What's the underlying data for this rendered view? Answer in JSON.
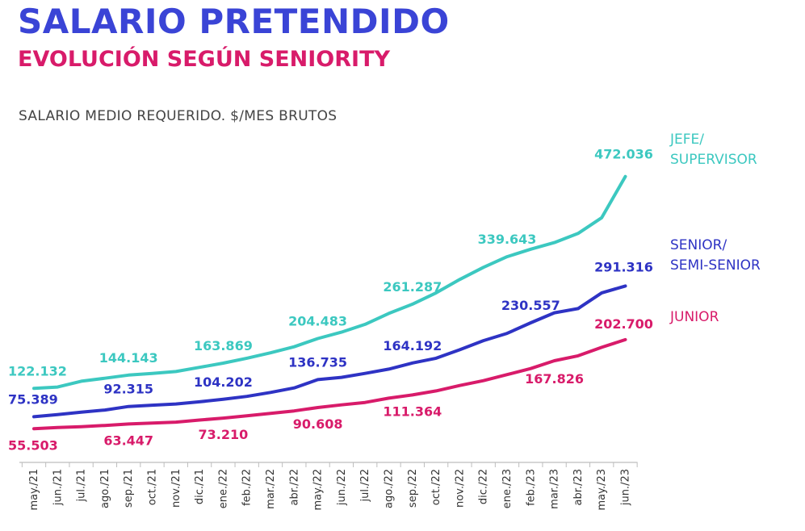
{
  "header": {
    "title": "SALARIO PRETENDIDO",
    "subtitle": "EVOLUCIÓN SEGÚN SENIORITY",
    "title_color": "#3a44d6",
    "subtitle_color": "#d81b6a"
  },
  "chart_data": {
    "type": "line",
    "ylabel": "SALARIO MEDIO REQUERIDO. $/MES BRUTOS",
    "categories": [
      "may./21",
      "jun./21",
      "jul./21",
      "ago./21",
      "sep./21",
      "oct./21",
      "nov./21",
      "dic./21",
      "ene./22",
      "feb./22",
      "mar./22",
      "abr./22",
      "may./22",
      "jun./22",
      "jul./22",
      "ago./22",
      "sep./22",
      "oct./22",
      "nov./22",
      "dic./22",
      "ene./23",
      "feb./23",
      "mar./23",
      "abr./23",
      "may./23",
      "jun./23"
    ],
    "ylim": [
      0,
      500000
    ],
    "grid": false,
    "series": [
      {
        "name": "JEFE/ SUPERVISOR",
        "label_lines": [
          "JEFE/",
          "SUPERVISOR"
        ],
        "color": "#3cc8c0",
        "values": [
          122132,
          124500,
          134000,
          139000,
          144143,
          147000,
          150000,
          157000,
          163869,
          172000,
          181000,
          191000,
          204483,
          215000,
          228000,
          246000,
          261287,
          280000,
          302000,
          322000,
          339643,
          352000,
          363000,
          378000,
          404000,
          472036
        ],
        "labeled_points": [
          {
            "index": 0,
            "text": "122.132"
          },
          {
            "index": 4,
            "text": "144.143"
          },
          {
            "index": 8,
            "text": "163.869"
          },
          {
            "index": 12,
            "text": "204.483"
          },
          {
            "index": 16,
            "text": "261.287"
          },
          {
            "index": 20,
            "text": "339.643"
          },
          {
            "index": 25,
            "text": "472.036"
          }
        ]
      },
      {
        "name": "SENIOR/ SEMI-SENIOR",
        "label_lines": [
          "SENIOR/",
          "SEMI-SENIOR"
        ],
        "color": "#2e33c4",
        "values": [
          75389,
          79000,
          83000,
          86500,
          92315,
          94500,
          96500,
          100000,
          104202,
          109000,
          115500,
          123000,
          136735,
          140500,
          147000,
          154000,
          164192,
          172000,
          186000,
          201000,
          213000,
          230557,
          247000,
          254000,
          280000,
          291316
        ],
        "labeled_points": [
          {
            "index": 0,
            "text": "75.389"
          },
          {
            "index": 4,
            "text": "92.315"
          },
          {
            "index": 8,
            "text": "104.202"
          },
          {
            "index": 12,
            "text": "136.735"
          },
          {
            "index": 16,
            "text": "164.192"
          },
          {
            "index": 21,
            "text": "230.557"
          },
          {
            "index": 25,
            "text": "291.316"
          }
        ]
      },
      {
        "name": "JUNIOR",
        "label_lines": [
          "JUNIOR"
        ],
        "color": "#d81b6a",
        "values": [
          55503,
          57500,
          59000,
          61000,
          63447,
          65000,
          66500,
          70000,
          73210,
          77000,
          81000,
          85000,
          90608,
          95000,
          99000,
          106000,
          111364,
          118000,
          127000,
          135000,
          145000,
          155000,
          167826,
          176000,
          190000,
          202700
        ],
        "labeled_points": [
          {
            "index": 0,
            "text": "55.503"
          },
          {
            "index": 4,
            "text": "63.447"
          },
          {
            "index": 8,
            "text": "73.210"
          },
          {
            "index": 12,
            "text": "90.608"
          },
          {
            "index": 16,
            "text": "111.364"
          },
          {
            "index": 22,
            "text": "167.826"
          },
          {
            "index": 25,
            "text": "202.700"
          }
        ]
      }
    ]
  }
}
